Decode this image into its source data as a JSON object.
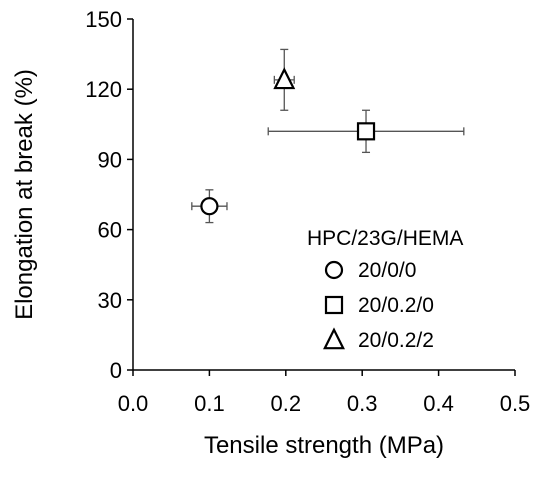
{
  "chart_data": {
    "type": "scatter",
    "xlabel": "Tensile strength (MPa)",
    "ylabel": "Elongation at break (%)",
    "xlim": [
      0.0,
      0.5
    ],
    "ylim": [
      0,
      150
    ],
    "x_ticks": [
      "0.0",
      "0.1",
      "0.2",
      "0.3",
      "0.4",
      "0.5"
    ],
    "y_ticks": [
      "0",
      "30",
      "60",
      "90",
      "120",
      "150"
    ],
    "grid": false,
    "legend": {
      "title": "HPC/23G/HEMA",
      "placement": "bottom-right"
    },
    "series": [
      {
        "name": "20/0/0",
        "marker": "circle",
        "x": 0.1,
        "y": 70,
        "xerr": 0.023,
        "yerr": 7
      },
      {
        "name": "20/0.2/0",
        "marker": "square",
        "x": 0.305,
        "y": 102,
        "xerr": 0.128,
        "yerr": 9
      },
      {
        "name": "20/0.2/2",
        "marker": "triangle",
        "x": 0.198,
        "y": 124,
        "xerr": 0.013,
        "yerr": 13
      }
    ]
  }
}
